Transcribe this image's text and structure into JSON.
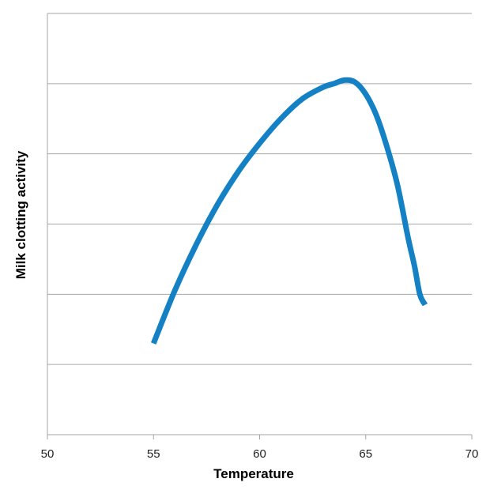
{
  "chart_data": {
    "type": "line",
    "title": "",
    "xlabel": "Temperature",
    "ylabel": "Milk clotting activity",
    "xlim": [
      50,
      70
    ],
    "ylim": [
      0,
      6
    ],
    "x_ticks": [
      50,
      55,
      60,
      65,
      70
    ],
    "y_gridlines": [
      1,
      2,
      3,
      4,
      5,
      6
    ],
    "y_tick_labels_shown": false,
    "grid": true,
    "legend": "none",
    "series": [
      {
        "color": "#1381c3",
        "x": [
          55.0,
          56.0,
          57.0,
          58.0,
          59.0,
          60.0,
          61.0,
          62.0,
          63.0,
          63.5,
          64.0,
          64.5,
          65.0,
          65.5,
          66.0,
          66.5,
          67.0,
          67.3,
          67.55,
          67.8
        ],
        "y": [
          1.3,
          2.05,
          2.7,
          3.27,
          3.75,
          4.15,
          4.5,
          4.78,
          4.95,
          5.0,
          5.05,
          5.02,
          4.85,
          4.55,
          4.1,
          3.55,
          2.8,
          2.4,
          2.0,
          1.85
        ]
      }
    ]
  }
}
